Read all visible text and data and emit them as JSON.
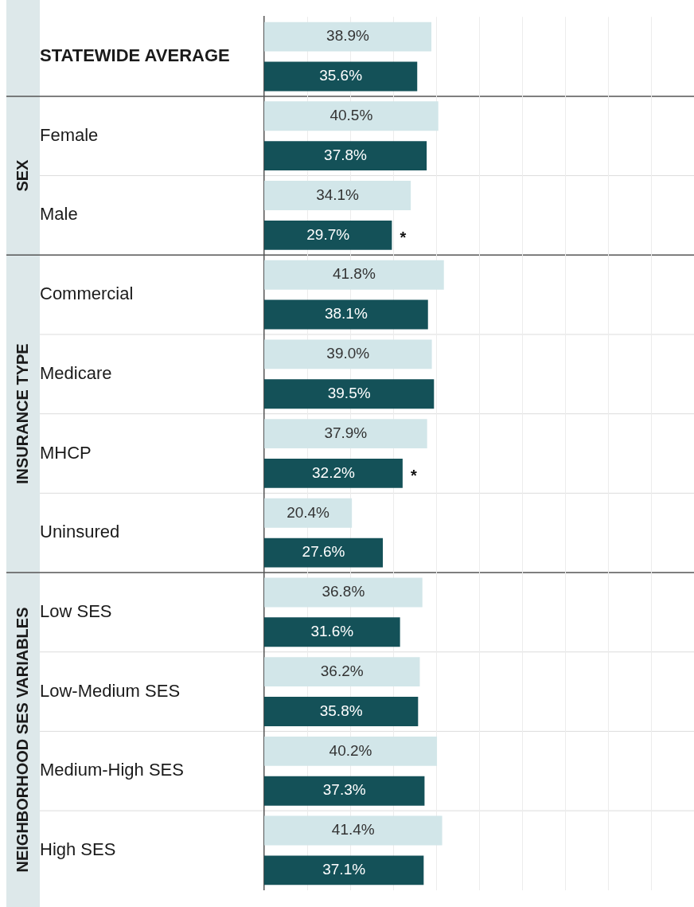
{
  "chart_data": {
    "type": "bar",
    "orientation": "horizontal",
    "categories": [
      "STATEWIDE AVERAGE",
      "Female",
      "Male",
      "Commercial",
      "Medicare",
      "MHCP",
      "Uninsured",
      "Low SES",
      "Low-Medium SES",
      "Medium-High SES",
      "High SES"
    ],
    "series": [
      {
        "color": "#d2e6e9",
        "values": [
          38.9,
          40.5,
          34.1,
          41.8,
          39.0,
          37.9,
          20.4,
          36.8,
          36.2,
          40.2,
          41.4
        ],
        "value_labels": [
          "38.9%",
          "40.5%",
          "34.1%",
          "41.8%",
          "39.0%",
          "37.9%",
          "20.4%",
          "36.8%",
          "36.2%",
          "40.2%",
          "41.4%"
        ]
      },
      {
        "color": "#145158",
        "values": [
          35.6,
          37.8,
          29.7,
          38.1,
          39.5,
          32.2,
          27.6,
          31.6,
          35.8,
          37.3,
          37.1
        ],
        "value_labels": [
          "35.6%",
          "37.8%",
          "29.7%",
          "38.1%",
          "39.5%",
          "32.2%",
          "27.6%",
          "31.6%",
          "35.8%",
          "37.3%",
          "37.1%"
        ]
      }
    ],
    "xlim": [
      0,
      100
    ],
    "xticks": [
      {
        "value": 10,
        "label": null
      },
      {
        "value": 20,
        "label": null
      },
      {
        "value": 30,
        "label": null
      },
      {
        "value": 40,
        "label": null
      },
      {
        "value": 50,
        "label": null
      },
      {
        "value": 60,
        "label": null
      },
      {
        "value": 70,
        "label": null
      },
      {
        "value": 80,
        "label": null
      },
      {
        "value": 90,
        "label": null
      }
    ],
    "grid": "x",
    "legend": false,
    "tick_labels": "y",
    "annotations": [
      "SEX",
      "INSURANCE TYPE",
      "NEIGHBORHOOD SES VARIABLES",
      "*",
      "*"
    ]
  }
}
